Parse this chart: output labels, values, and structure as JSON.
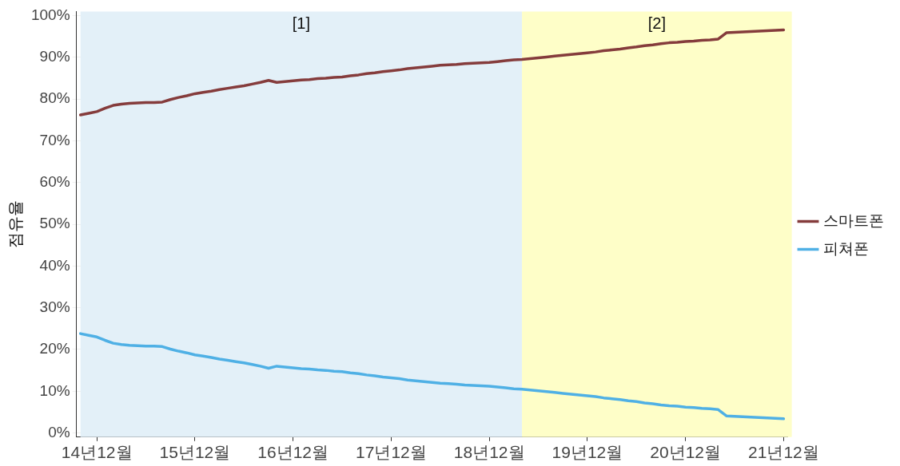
{
  "chart_data": {
    "type": "line",
    "ylabel": "점유율",
    "categories": [
      null,
      null,
      "14년12월",
      null,
      null,
      null,
      null,
      null,
      null,
      null,
      null,
      null,
      null,
      null,
      "15년12월",
      null,
      null,
      null,
      null,
      null,
      null,
      null,
      null,
      null,
      null,
      null,
      "16년12월",
      null,
      null,
      null,
      null,
      null,
      null,
      null,
      null,
      null,
      null,
      null,
      "17년12월",
      null,
      null,
      null,
      null,
      null,
      null,
      null,
      null,
      null,
      null,
      null,
      "18년12월",
      null,
      null,
      null,
      null,
      null,
      null,
      null,
      null,
      null,
      null,
      null,
      "19년12월",
      null,
      null,
      null,
      null,
      null,
      null,
      null,
      null,
      null,
      null,
      null,
      "20년12월",
      null,
      null,
      null,
      null,
      null,
      null,
      null,
      null,
      null,
      null,
      null,
      "21년12월"
    ],
    "series": [
      {
        "name": "스마트폰",
        "color": "#853c3c",
        "values": [
          76.2,
          76.6,
          77.0,
          77.8,
          78.5,
          78.8,
          79.0,
          79.1,
          79.2,
          79.2,
          79.3,
          79.9,
          80.4,
          80.8,
          81.3,
          81.6,
          81.9,
          82.3,
          82.6,
          82.9,
          83.2,
          83.6,
          84.0,
          84.5,
          84.0,
          84.2,
          84.4,
          84.6,
          84.7,
          84.9,
          85.0,
          85.2,
          85.3,
          85.6,
          85.8,
          86.1,
          86.3,
          86.6,
          86.8,
          87.0,
          87.3,
          87.5,
          87.7,
          87.9,
          88.1,
          88.2,
          88.3,
          88.5,
          88.6,
          88.7,
          88.8,
          89.0,
          89.2,
          89.4,
          89.5,
          89.7,
          89.9,
          90.1,
          90.3,
          90.5,
          90.7,
          90.9,
          91.1,
          91.3,
          91.6,
          91.8,
          92.0,
          92.3,
          92.5,
          92.8,
          93.0,
          93.3,
          93.5,
          93.6,
          93.8,
          93.9,
          94.1,
          94.2,
          94.4,
          95.9,
          96.0,
          96.1,
          96.2,
          96.3,
          96.4,
          96.5,
          96.6
        ]
      },
      {
        "name": "피쳐폰",
        "color": "#4fb0e5",
        "values": [
          23.8,
          23.4,
          23.0,
          22.2,
          21.5,
          21.2,
          21.0,
          20.9,
          20.8,
          20.8,
          20.7,
          20.1,
          19.6,
          19.2,
          18.7,
          18.4,
          18.1,
          17.7,
          17.4,
          17.1,
          16.8,
          16.4,
          16.0,
          15.5,
          16.0,
          15.8,
          15.6,
          15.4,
          15.3,
          15.1,
          15.0,
          14.8,
          14.7,
          14.4,
          14.2,
          13.9,
          13.7,
          13.4,
          13.2,
          13.0,
          12.7,
          12.5,
          12.3,
          12.1,
          11.9,
          11.8,
          11.7,
          11.5,
          11.4,
          11.3,
          11.2,
          11.0,
          10.8,
          10.6,
          10.5,
          10.3,
          10.1,
          9.9,
          9.7,
          9.5,
          9.3,
          9.1,
          8.9,
          8.7,
          8.4,
          8.2,
          8.0,
          7.7,
          7.5,
          7.2,
          7.0,
          6.7,
          6.5,
          6.4,
          6.2,
          6.1,
          5.9,
          5.8,
          5.6,
          4.1,
          4.0,
          3.9,
          3.8,
          3.7,
          3.6,
          3.5,
          3.4
        ]
      }
    ],
    "ylim": [
      -1,
      101
    ],
    "yticks": [
      {
        "value": 0,
        "label": "0%"
      },
      {
        "value": 10,
        "label": "10%"
      },
      {
        "value": 20,
        "label": "20%"
      },
      {
        "value": 30,
        "label": "30%"
      },
      {
        "value": 40,
        "label": "40%"
      },
      {
        "value": 50,
        "label": "50%"
      },
      {
        "value": 60,
        "label": "60%"
      },
      {
        "value": 70,
        "label": "70%"
      },
      {
        "value": 80,
        "label": "80%"
      },
      {
        "value": 90,
        "label": "90%"
      },
      {
        "value": 100,
        "label": "100%"
      }
    ],
    "annotations": [
      "[1]",
      "[2]"
    ],
    "grid": "y",
    "legend": "right",
    "marker": "none",
    "line_style": "solid"
  }
}
